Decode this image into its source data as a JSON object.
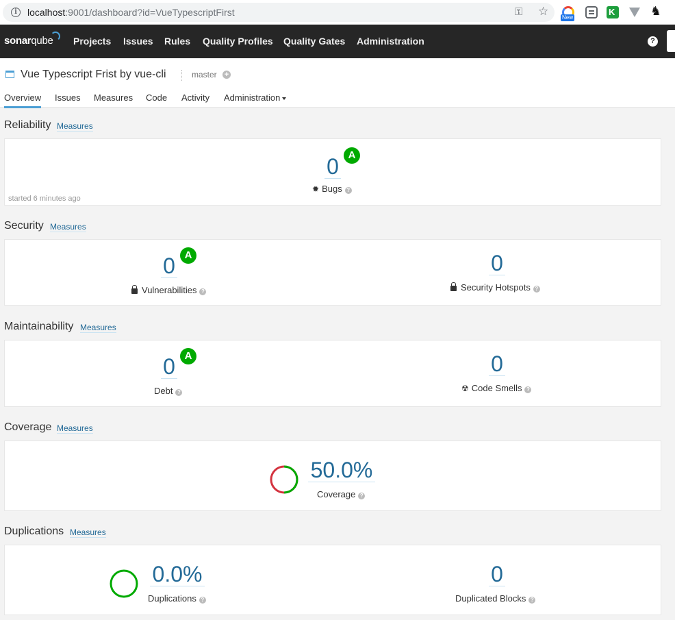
{
  "browser": {
    "url_host": "localhost",
    "url_rest": ":9001/dashboard?id=VueTypescriptFirst",
    "ext_new_badge": "New"
  },
  "nav": {
    "logo_bold": "sonar",
    "logo_rest": "qube",
    "items": [
      "Projects",
      "Issues",
      "Rules",
      "Quality Profiles",
      "Quality Gates",
      "Administration"
    ],
    "help": "?"
  },
  "project": {
    "title": "Vue Typescript Frist by vue-cli",
    "branch": "master",
    "branch_add": "+",
    "tabs": [
      "Overview",
      "Issues",
      "Measures",
      "Code",
      "Activity",
      "Administration"
    ],
    "active_tab": "Overview"
  },
  "sections": {
    "reliability": {
      "title": "Reliability",
      "link": "Measures",
      "bugs_value": "0",
      "bugs_rating": "A",
      "bugs_label": "Bugs",
      "started": "started 6 minutes ago"
    },
    "security": {
      "title": "Security",
      "link": "Measures",
      "vuln_value": "0",
      "vuln_rating": "A",
      "vuln_label": "Vulnerabilities",
      "hotspots_value": "0",
      "hotspots_label": "Security Hotspots"
    },
    "maintainability": {
      "title": "Maintainability",
      "link": "Measures",
      "debt_value": "0",
      "debt_rating": "A",
      "debt_label": "Debt",
      "smells_value": "0",
      "smells_label": "Code Smells"
    },
    "coverage": {
      "title": "Coverage",
      "link": "Measures",
      "value": "50.0%",
      "label": "Coverage",
      "fraction": 0.5
    },
    "duplications": {
      "title": "Duplications",
      "link": "Measures",
      "value": "0.0%",
      "label": "Duplications",
      "blocks_value": "0",
      "blocks_label": "Duplicated Blocks"
    }
  },
  "colors": {
    "rating_a": "#00aa00",
    "link": "#236a97",
    "covered": "#00aa00",
    "uncovered": "#d4333f"
  }
}
